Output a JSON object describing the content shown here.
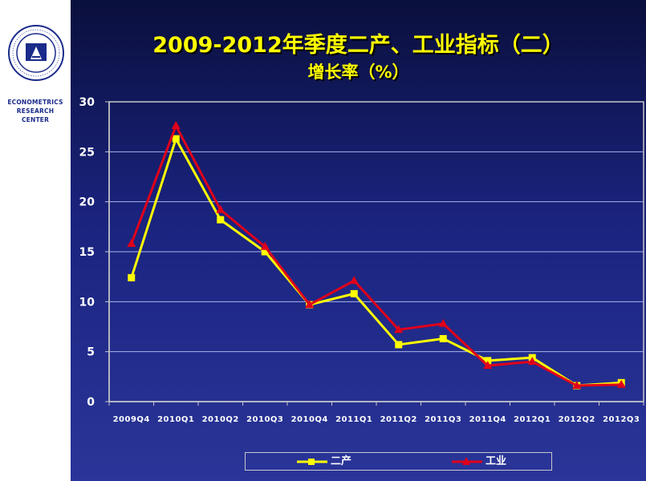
{
  "sidebar": {
    "center_name_lines": [
      "ECONOMETRICS",
      "RESEARCH",
      "CENTER"
    ],
    "logo_icon": "institute-seal-logo"
  },
  "header": {
    "title": "2009-2012年季度二产、工业指标（二）",
    "subtitle": "增长率（%）"
  },
  "colors": {
    "background": "#1a237e",
    "series_erchan": "#ffff00",
    "series_gongye": "#e0001b",
    "axis": "#c8c8c8",
    "grid": "#aab4e8"
  },
  "chart_data": {
    "type": "line",
    "title": "2009-2012年季度二产、工业指标（二） 增长率（%）",
    "xlabel": "",
    "ylabel": "",
    "categories": [
      "2009Q4",
      "2010Q1",
      "2010Q2",
      "2010Q3",
      "2010Q4",
      "2011Q1",
      "2011Q2",
      "2011Q3",
      "2011Q4",
      "2012Q1",
      "2012Q2",
      "2012Q3"
    ],
    "ylim": [
      0,
      30
    ],
    "yticks": [
      0,
      5,
      10,
      15,
      20,
      25,
      30
    ],
    "grid": true,
    "legend_position": "bottom",
    "series": [
      {
        "name": "二产",
        "marker": "square",
        "color": "#ffff00",
        "values": [
          12.4,
          26.3,
          18.2,
          15.0,
          9.7,
          10.8,
          5.7,
          6.3,
          4.1,
          4.4,
          1.6,
          1.9
        ]
      },
      {
        "name": "工业",
        "marker": "triangle",
        "color": "#e0001b",
        "values": [
          15.8,
          27.6,
          19.2,
          15.5,
          9.7,
          12.1,
          7.2,
          7.8,
          3.6,
          4.0,
          1.6,
          1.7
        ]
      }
    ]
  }
}
